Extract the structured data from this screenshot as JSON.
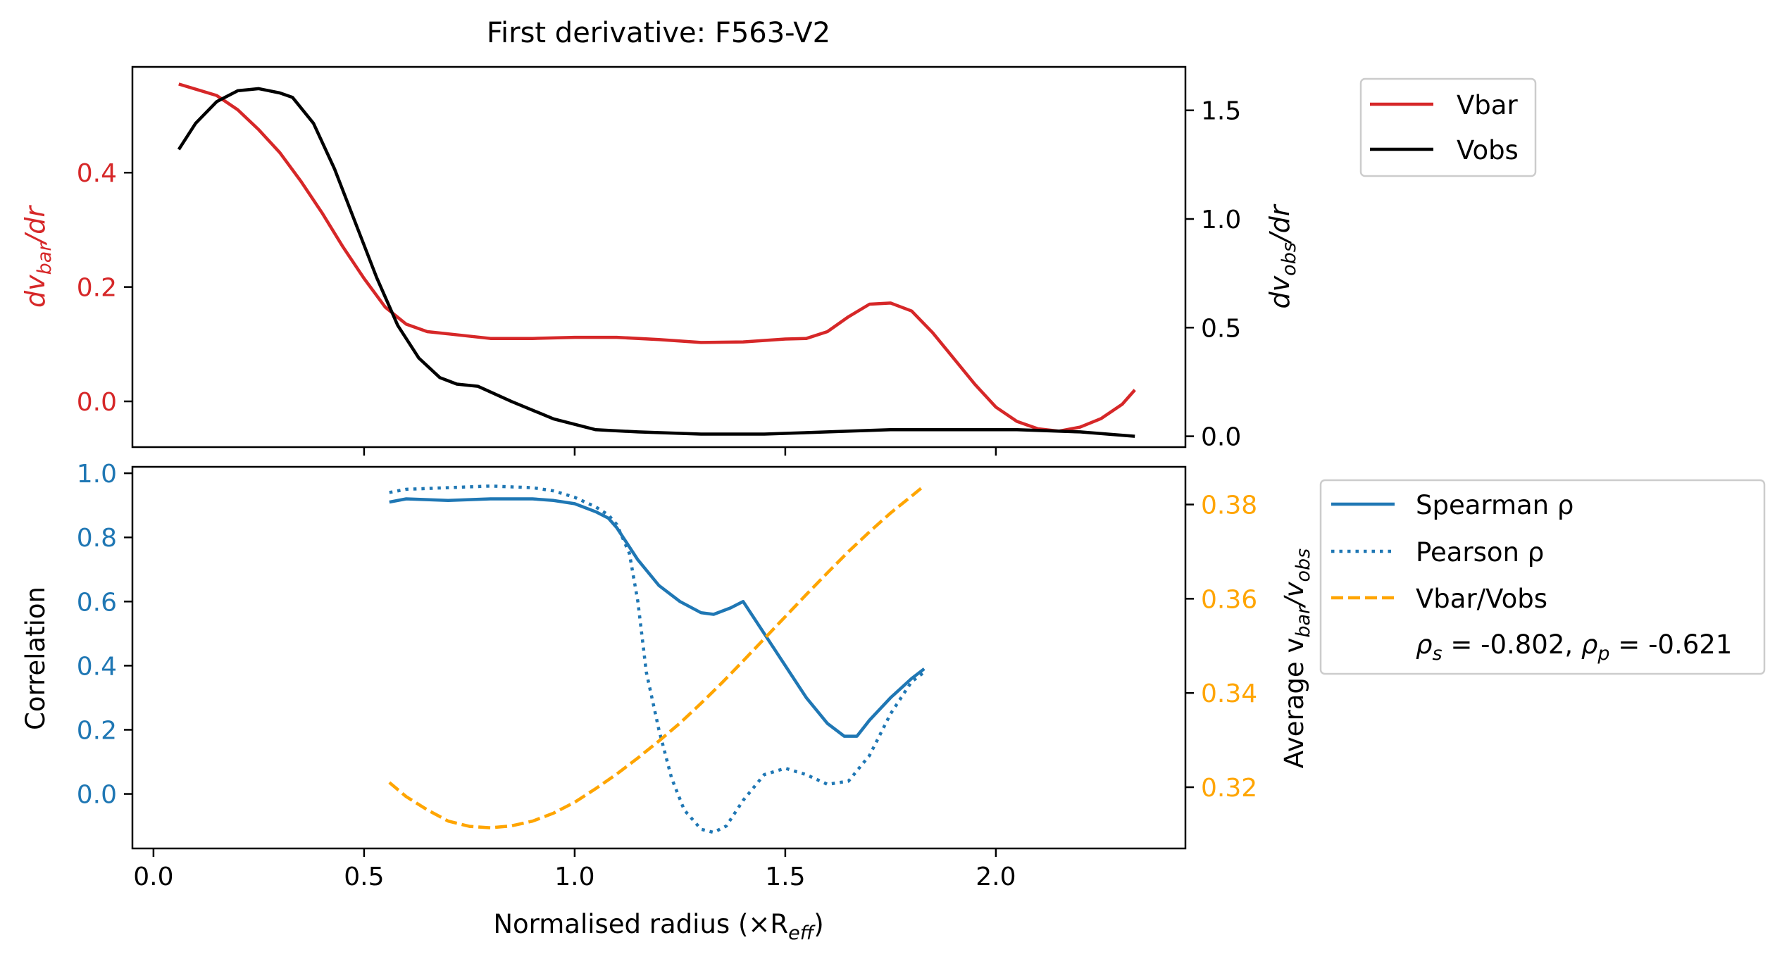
{
  "chart_data": [
    {
      "type": "line",
      "title": "First derivative: F563-V2",
      "xlim": [
        -0.05,
        2.45
      ],
      "ylim_left": [
        -0.08,
        0.585
      ],
      "ylim_right": [
        -0.05,
        1.7
      ],
      "xticks": [
        0.5,
        1.0,
        1.5,
        2.0
      ],
      "yticks_left": [
        0.0,
        0.2,
        0.4
      ],
      "ytick_labels_left": [
        "0.0",
        "0.2",
        "0.4"
      ],
      "yticks_right": [
        0.0,
        0.5,
        1.0,
        1.5
      ],
      "ytick_labels_right": [
        "0.0",
        "0.5",
        "1.0",
        "1.5"
      ],
      "ylabel_left": {
        "base": "dv",
        "sub": "bar",
        "tail": "/dr"
      },
      "ylabel_right": {
        "base": "dv",
        "sub": "obs",
        "tail": "/dr"
      },
      "legend": {
        "placement": "outside-right-top",
        "entries": [
          "Vbar",
          "Vobs"
        ]
      },
      "colors": {
        "left_axis": "#d62728",
        "vbar": "#d62728",
        "vobs": "#000000"
      },
      "series": [
        {
          "name": "Vbar",
          "axis": "left",
          "style": "solid",
          "x": [
            0.06,
            0.15,
            0.2,
            0.25,
            0.3,
            0.35,
            0.4,
            0.45,
            0.5,
            0.55,
            0.6,
            0.65,
            0.7,
            0.8,
            0.9,
            1.0,
            1.1,
            1.2,
            1.3,
            1.4,
            1.5,
            1.55,
            1.6,
            1.65,
            1.7,
            1.75,
            1.8,
            1.85,
            1.9,
            1.95,
            2.0,
            2.05,
            2.1,
            2.15,
            2.2,
            2.25,
            2.3,
            2.33
          ],
          "y": [
            0.555,
            0.535,
            0.51,
            0.475,
            0.435,
            0.385,
            0.33,
            0.27,
            0.215,
            0.165,
            0.135,
            0.122,
            0.118,
            0.11,
            0.11,
            0.112,
            0.112,
            0.108,
            0.103,
            0.104,
            0.109,
            0.11,
            0.122,
            0.148,
            0.17,
            0.172,
            0.158,
            0.12,
            0.075,
            0.03,
            -0.01,
            -0.035,
            -0.048,
            -0.052,
            -0.045,
            -0.03,
            -0.005,
            0.02
          ]
        },
        {
          "name": "Vobs",
          "axis": "right",
          "style": "solid",
          "x": [
            0.06,
            0.1,
            0.15,
            0.2,
            0.25,
            0.3,
            0.33,
            0.38,
            0.43,
            0.48,
            0.53,
            0.58,
            0.63,
            0.68,
            0.72,
            0.77,
            0.85,
            0.95,
            1.05,
            1.15,
            1.3,
            1.45,
            1.6,
            1.75,
            1.9,
            2.05,
            2.2,
            2.33
          ],
          "y": [
            1.32,
            1.44,
            1.54,
            1.59,
            1.6,
            1.58,
            1.56,
            1.44,
            1.23,
            0.98,
            0.73,
            0.51,
            0.36,
            0.27,
            0.24,
            0.23,
            0.16,
            0.08,
            0.03,
            0.02,
            0.01,
            0.01,
            0.02,
            0.03,
            0.03,
            0.03,
            0.02,
            0.0
          ]
        }
      ]
    },
    {
      "type": "line",
      "xlabel": {
        "base": "Normalised radius (×R",
        "sub": "eff",
        "tail": ")"
      },
      "xlim": [
        -0.05,
        2.45
      ],
      "ylim_left": [
        -0.17,
        1.02
      ],
      "ylim_right": [
        0.307,
        0.388
      ],
      "xticks": [
        0.0,
        0.5,
        1.0,
        1.5,
        2.0
      ],
      "xtick_labels": [
        "0.0",
        "0.5",
        "1.0",
        "1.5",
        "2.0"
      ],
      "yticks_left": [
        0.0,
        0.2,
        0.4,
        0.6,
        0.8,
        1.0
      ],
      "ytick_labels_left": [
        "0.0",
        "0.2",
        "0.4",
        "0.6",
        "0.8",
        "1.0"
      ],
      "yticks_right": [
        0.32,
        0.34,
        0.36,
        0.38
      ],
      "ytick_labels_right": [
        "0.32",
        "0.34",
        "0.36",
        "0.38"
      ],
      "ylabel_left": "Correlation",
      "ylabel_right": {
        "base": "Average v",
        "sub1": "bar",
        "mid": "/v",
        "sub2": "obs"
      },
      "legend": {
        "placement": "outside-right",
        "entries": [
          "Spearman ρ",
          "Pearson ρ",
          "Vbar/Vobs"
        ],
        "note": {
          "a": "ρ",
          "a_sub": "s",
          "a_val": " = -0.802, ",
          "b": "ρ",
          "b_sub": "p",
          "b_val": " = -0.621"
        }
      },
      "colors": {
        "left_axis": "#1f77b4",
        "right_axis": "#ffa500",
        "spearman": "#1f77b4",
        "pearson": "#1f77b4",
        "ratio": "#ffa500"
      },
      "series": [
        {
          "name": "Spearman ρ",
          "axis": "left",
          "style": "solid",
          "x": [
            0.56,
            0.6,
            0.7,
            0.8,
            0.9,
            0.95,
            1.0,
            1.05,
            1.08,
            1.1,
            1.15,
            1.2,
            1.25,
            1.3,
            1.33,
            1.37,
            1.4,
            1.45,
            1.5,
            1.55,
            1.6,
            1.64,
            1.67,
            1.7,
            1.75,
            1.8,
            1.83
          ],
          "y": [
            0.91,
            0.92,
            0.915,
            0.92,
            0.92,
            0.915,
            0.905,
            0.88,
            0.86,
            0.83,
            0.73,
            0.65,
            0.6,
            0.565,
            0.56,
            0.58,
            0.6,
            0.5,
            0.4,
            0.3,
            0.22,
            0.18,
            0.18,
            0.23,
            0.3,
            0.36,
            0.39
          ]
        },
        {
          "name": "Pearson ρ",
          "axis": "left",
          "style": "dotted",
          "x": [
            0.56,
            0.6,
            0.7,
            0.8,
            0.9,
            0.95,
            1.0,
            1.05,
            1.08,
            1.1,
            1.13,
            1.15,
            1.17,
            1.2,
            1.23,
            1.26,
            1.3,
            1.33,
            1.36,
            1.4,
            1.45,
            1.5,
            1.55,
            1.6,
            1.65,
            1.7,
            1.75,
            1.8,
            1.83
          ],
          "y": [
            0.94,
            0.95,
            0.955,
            0.96,
            0.955,
            0.945,
            0.925,
            0.895,
            0.87,
            0.84,
            0.75,
            0.6,
            0.38,
            0.2,
            0.05,
            -0.05,
            -0.11,
            -0.12,
            -0.1,
            -0.02,
            0.06,
            0.08,
            0.06,
            0.03,
            0.04,
            0.12,
            0.25,
            0.35,
            0.38
          ]
        },
        {
          "name": "Vbar/Vobs",
          "axis": "right",
          "style": "dashed",
          "x": [
            0.56,
            0.6,
            0.65,
            0.7,
            0.75,
            0.8,
            0.85,
            0.9,
            0.95,
            1.0,
            1.05,
            1.1,
            1.15,
            1.2,
            1.25,
            1.3,
            1.35,
            1.4,
            1.45,
            1.5,
            1.55,
            1.6,
            1.65,
            1.7,
            1.75,
            1.8,
            1.83
          ],
          "y": [
            0.321,
            0.318,
            0.3152,
            0.3128,
            0.3117,
            0.3114,
            0.3118,
            0.3128,
            0.3145,
            0.3168,
            0.3197,
            0.3228,
            0.3262,
            0.3298,
            0.3336,
            0.3378,
            0.3422,
            0.3468,
            0.3515,
            0.3562,
            0.3609,
            0.3655,
            0.37,
            0.3742,
            0.3782,
            0.3818,
            0.384
          ]
        }
      ]
    }
  ]
}
